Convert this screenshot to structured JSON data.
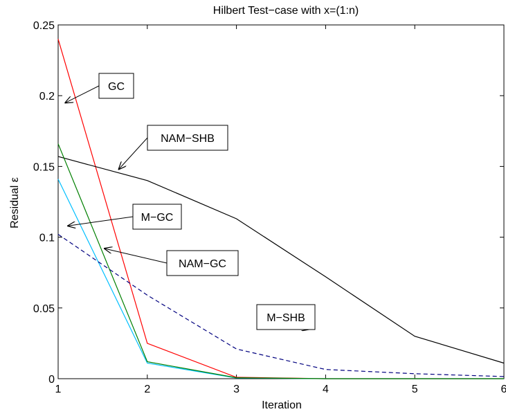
{
  "chart_data": {
    "type": "line",
    "title": "Hilbert Test−case with x=(1:n)",
    "xlabel": "Iteration",
    "ylabel": "Residual ε",
    "xlim": [
      1,
      6
    ],
    "ylim": [
      0,
      0.25
    ],
    "xticks": [
      "1",
      "2",
      "3",
      "4",
      "5",
      "6"
    ],
    "yticks": [
      "0",
      "0.05",
      "0.1",
      "0.15",
      "0.2",
      "0.25"
    ],
    "x": [
      1,
      2,
      3,
      4,
      5,
      6
    ],
    "grid": false,
    "series": [
      {
        "name": "GC",
        "color": "#ff0000",
        "dash": "solid",
        "values": [
          0.24,
          0.025,
          0.001,
          0.0,
          0.0,
          0.0
        ]
      },
      {
        "name": "NAM−SHB",
        "color": "#000000",
        "dash": "solid",
        "values": [
          0.157,
          0.14,
          0.113,
          0.072,
          0.03,
          0.011
        ]
      },
      {
        "name": "M−GC",
        "color": "#00bfff",
        "dash": "solid",
        "values": [
          0.141,
          0.011,
          0.0005,
          0.0,
          0.0,
          0.0
        ]
      },
      {
        "name": "NAM−GC",
        "color": "#007f00",
        "dash": "solid",
        "values": [
          0.166,
          0.012,
          0.0007,
          0.0,
          0.0,
          0.0
        ]
      },
      {
        "name": "M−SHB",
        "color": "#00007f",
        "dash": "dashed",
        "values": [
          0.102,
          0.059,
          0.021,
          0.0065,
          0.0035,
          0.0015
        ]
      }
    ],
    "annotations": [
      {
        "text": "GC",
        "target": [
          1.08,
          0.195
        ]
      },
      {
        "text": "NAM−SHB",
        "target": [
          1.68,
          0.148
        ]
      },
      {
        "text": "M−GC",
        "target": [
          1.11,
          0.108
        ]
      },
      {
        "text": "NAM−GC",
        "target": [
          1.52,
          0.092
        ]
      },
      {
        "text": "M−SHB",
        "target": [
          3.82,
          0.035
        ]
      }
    ]
  }
}
